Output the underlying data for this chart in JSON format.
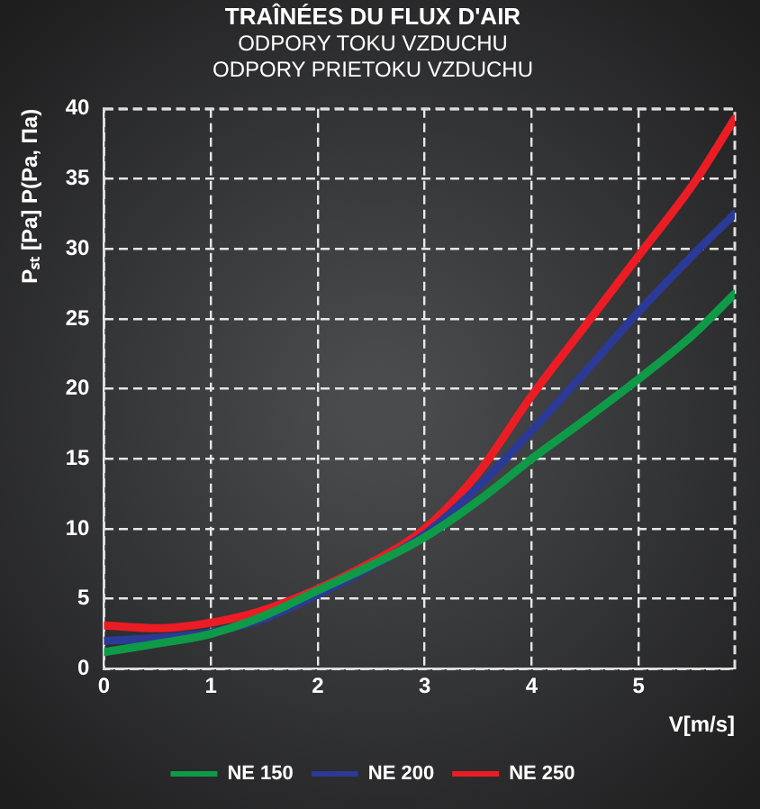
{
  "chart_data": {
    "type": "line",
    "title": "TRAÎNÉES DU FLUX D'AIR",
    "subtitle": [
      "ODPORY TOKU VZDUCHU",
      "ODPORY PRIETOKU VZDUCHU"
    ],
    "xlabel": "V[m/s]",
    "ylabel": "Pₛₜ [Pa] P(Pa, Па)",
    "x": [
      0,
      0.5,
      1,
      1.5,
      2,
      2.5,
      3,
      3.5,
      4,
      4.5,
      5,
      5.5,
      5.9
    ],
    "series": [
      {
        "name": "NE 150",
        "color": "#0f9a48",
        "values": [
          1.2,
          1.8,
          2.5,
          3.8,
          5.6,
          7.4,
          9.4,
          12,
          15,
          17.8,
          20.7,
          23.8,
          26.8
        ]
      },
      {
        "name": "NE 200",
        "color": "#2b3a96",
        "values": [
          2.0,
          2.2,
          2.6,
          3.6,
          5.3,
          7.3,
          9.6,
          13,
          17,
          21.2,
          25.5,
          29.5,
          32.5
        ]
      },
      {
        "name": "NE 250",
        "color": "#ec1c24",
        "values": [
          3.1,
          2.9,
          3.3,
          4.2,
          null,
          7.6,
          10,
          14,
          19.5,
          24.5,
          29.5,
          34.5,
          39.3
        ]
      }
    ],
    "xlim": [
      0,
      5.9
    ],
    "xticks": [
      0,
      1,
      2,
      3,
      4,
      5
    ],
    "ylim": [
      0,
      40
    ],
    "yticks": [
      0,
      5,
      10,
      15,
      20,
      25,
      30,
      35,
      40
    ],
    "grid": true,
    "legend": "bottom",
    "marker": "none",
    "line_style": "solid"
  }
}
